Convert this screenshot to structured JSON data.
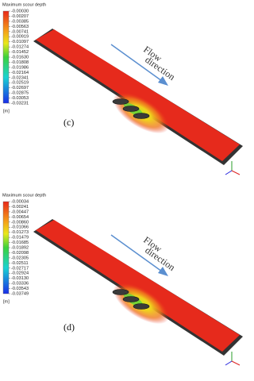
{
  "panels": [
    {
      "colorbar": {
        "title": "Maximum scour depth",
        "unit": "[m]",
        "ticks": [
          "-0.00030",
          "-0.00207",
          "-0.00385",
          "-0.00563",
          "-0.00741",
          "-0.00919",
          "-0.01097",
          "-0.01274",
          "-0.01452",
          "-0.01630",
          "-0.01808",
          "-0.01986",
          "-0.02164",
          "-0.02341",
          "-0.02519",
          "-0.02697",
          "-0.02875",
          "-0.03053",
          "-0.03231"
        ]
      },
      "flow_label": [
        "Flow",
        "direction"
      ],
      "panel_label": "(c)"
    },
    {
      "colorbar": {
        "title": "Maximum scour depth",
        "unit": "[m]",
        "ticks": [
          "-0.00034",
          "-0.00241",
          "-0.00447",
          "-0.00654",
          "-0.00860",
          "-0.01066",
          "-0.01273",
          "-0.01479",
          "-0.01685",
          "-0.01892",
          "-0.02098",
          "-0.02305",
          "-0.02511",
          "-0.02717",
          "-0.02924",
          "-0.03130",
          "-0.03336",
          "-0.03543",
          "-0.03749"
        ]
      },
      "flow_label": [
        "Flow",
        "direction"
      ],
      "panel_label": "(d)"
    }
  ]
}
